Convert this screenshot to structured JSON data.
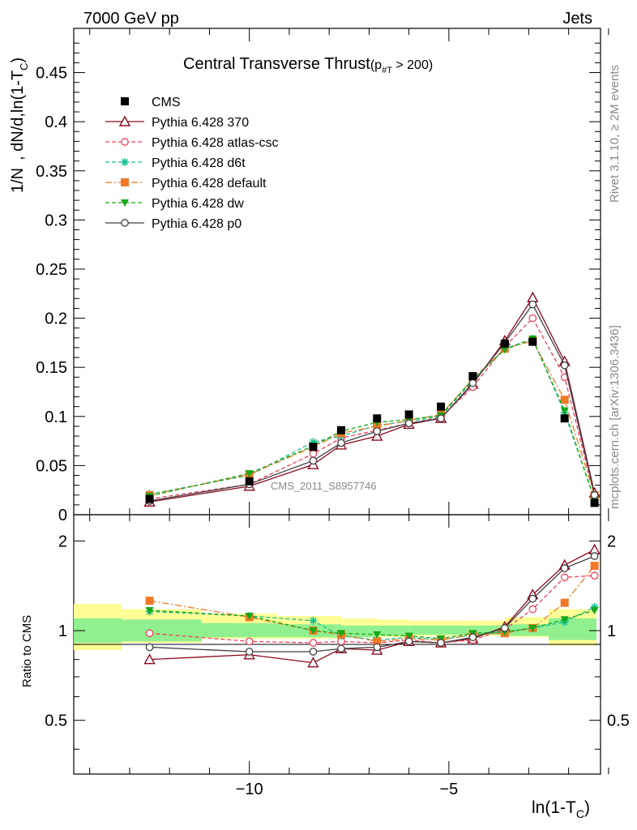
{
  "header": {
    "left": "7000 GeV pp",
    "right": "Jets"
  },
  "side_labels": {
    "rivet": "Rivet 3.1.10, ≥ 2M events",
    "mcplots": "mcplots.cern.ch [arXiv:1306.3436]"
  },
  "watermark": "CMS_2011_S8957746",
  "title": {
    "main": "Central Transverse Thrust",
    "open": "(p",
    "sub": "#T",
    "close": " > 200)"
  },
  "axes": {
    "ylabel_main": "1/N   , dN/d,ln(1-T",
    "ylabel_sub": "C",
    "ylabel_end": ")",
    "xlabel_main": "ln(1-T",
    "xlabel_sub": "C",
    "xlabel_end": ")",
    "ratio_ylabel": "Ratio to CMS",
    "main_yticks": [
      "0.45",
      "0.4",
      "0.35",
      "0.3",
      "0.25",
      "0.2",
      "0.15",
      "0.1",
      "0.05",
      "0"
    ],
    "ratio_yticks": [
      "2",
      "1",
      "0.5"
    ],
    "xticks": [
      "−10",
      "−5"
    ]
  },
  "legend": [
    {
      "label": "CMS",
      "color": "#000000",
      "marker": "square-filled",
      "dash": "none"
    },
    {
      "label": "Pythia 6.428 370",
      "color": "#8b0a1e",
      "marker": "triangle-open",
      "dash": "solid"
    },
    {
      "label": "Pythia 6.428 atlas-csc",
      "color": "#f0405a",
      "marker": "circle-open",
      "dash": "dashed"
    },
    {
      "label": "Pythia 6.428 d6t",
      "color": "#17c090",
      "marker": "star",
      "dash": "dashed"
    },
    {
      "label": "Pythia 6.428 default",
      "color": "#f07828",
      "marker": "square-filled",
      "dash": "dashdot"
    },
    {
      "label": "Pythia 6.428 dw",
      "color": "#18a818",
      "marker": "triangle-down-filled",
      "dash": "dashed"
    },
    {
      "label": "Pythia 6.428 p0",
      "color": "#404040",
      "marker": "circle-open",
      "dash": "solid"
    }
  ],
  "chart_data": {
    "type": "line",
    "x_range": [
      -14.4,
      -1.2
    ],
    "main_ylim": [
      0,
      0.495
    ],
    "ratio_ylim": [
      0.33,
      2.45
    ],
    "ratio_scale": "log",
    "x": [
      -12.5,
      -10.0,
      -8.4,
      -7.7,
      -6.8,
      -6.0,
      -5.2,
      -4.4,
      -3.6,
      -2.9,
      -2.1,
      -1.35
    ],
    "series": [
      {
        "name": "CMS",
        "values": [
          0.016,
          0.034,
          0.069,
          0.086,
          0.098,
          0.102,
          0.11,
          0.141,
          0.174,
          0.176,
          0.098,
          0.012
        ]
      },
      {
        "name": "Pythia 6.428 370",
        "values": [
          0.013,
          0.029,
          0.051,
          0.071,
          0.08,
          0.092,
          0.098,
          0.133,
          0.177,
          0.221,
          0.156,
          0.022
        ]
      },
      {
        "name": "Pythia 6.428 atlas-csc",
        "values": [
          0.016,
          0.031,
          0.062,
          0.078,
          0.086,
          0.093,
          0.099,
          0.13,
          0.171,
          0.2,
          0.14,
          0.019
        ]
      },
      {
        "name": "Pythia 6.428 d6t",
        "values": [
          0.021,
          0.04,
          0.074,
          0.08,
          0.091,
          0.095,
          0.1,
          0.137,
          0.169,
          0.179,
          0.104,
          0.015
        ]
      },
      {
        "name": "Pythia 6.428 default",
        "values": [
          0.02,
          0.041,
          0.069,
          0.083,
          0.09,
          0.096,
          0.102,
          0.138,
          0.169,
          0.177,
          0.117,
          0.02
        ]
      },
      {
        "name": "Pythia 6.428 dw",
        "values": [
          0.019,
          0.042,
          0.07,
          0.085,
          0.094,
          0.097,
          0.101,
          0.138,
          0.168,
          0.179,
          0.106,
          0.015
        ]
      },
      {
        "name": "Pythia 6.428 p0",
        "values": [
          0.014,
          0.031,
          0.055,
          0.073,
          0.085,
          0.093,
          0.098,
          0.134,
          0.175,
          0.214,
          0.152,
          0.02
        ]
      }
    ],
    "ratio_series": [
      {
        "name": "Pythia 6.428 370",
        "values": [
          0.8,
          0.83,
          0.78,
          0.87,
          0.86,
          0.92,
          0.91,
          0.94,
          1.03,
          1.32,
          1.66,
          1.87
        ]
      },
      {
        "name": "Pythia 6.428 atlas-csc",
        "values": [
          0.98,
          0.92,
          0.91,
          0.92,
          0.91,
          0.93,
          0.91,
          0.93,
          1.01,
          1.18,
          1.51,
          1.53
        ]
      },
      {
        "name": "Pythia 6.428 d6t",
        "values": [
          1.16,
          1.12,
          1.08,
          0.96,
          0.93,
          0.95,
          0.93,
          0.97,
          0.99,
          1.02,
          1.07,
          1.2
        ]
      },
      {
        "name": "Pythia 6.428 default",
        "values": [
          1.26,
          1.11,
          1.0,
          0.97,
          0.92,
          0.94,
          0.93,
          0.97,
          0.98,
          1.02,
          1.24,
          1.65
        ]
      },
      {
        "name": "Pythia 6.428 dw",
        "values": [
          1.17,
          1.12,
          1.0,
          0.98,
          0.97,
          0.96,
          0.94,
          0.98,
          0.99,
          1.02,
          1.09,
          1.17
        ]
      },
      {
        "name": "Pythia 6.428 p0",
        "values": [
          0.88,
          0.85,
          0.85,
          0.87,
          0.88,
          0.92,
          0.91,
          0.95,
          1.02,
          1.28,
          1.62,
          1.78
        ]
      }
    ],
    "ratio_bands": {
      "edges": [
        -14.4,
        -13.2,
        -11.2,
        -9.3,
        -7.7,
        -6.8,
        -6.0,
        -4.4,
        -3.6,
        -2.5,
        -1.3
      ],
      "inner": [
        [
          0.91,
          1.1
        ],
        [
          0.92,
          1.09
        ],
        [
          0.95,
          1.06
        ],
        [
          0.95,
          1.05
        ],
        [
          0.95,
          1.04
        ],
        [
          0.96,
          1.04
        ],
        [
          0.97,
          1.04
        ],
        [
          0.97,
          1.04
        ],
        [
          0.96,
          1.05
        ],
        [
          0.93,
          1.1
        ]
      ],
      "outer": [
        [
          0.86,
          1.23
        ],
        [
          0.91,
          1.18
        ],
        [
          0.94,
          1.14
        ],
        [
          0.94,
          1.12
        ],
        [
          0.95,
          1.1
        ],
        [
          0.95,
          1.09
        ],
        [
          0.96,
          1.08
        ],
        [
          0.96,
          1.08
        ],
        [
          0.95,
          1.11
        ],
        [
          0.89,
          1.18
        ]
      ]
    }
  }
}
